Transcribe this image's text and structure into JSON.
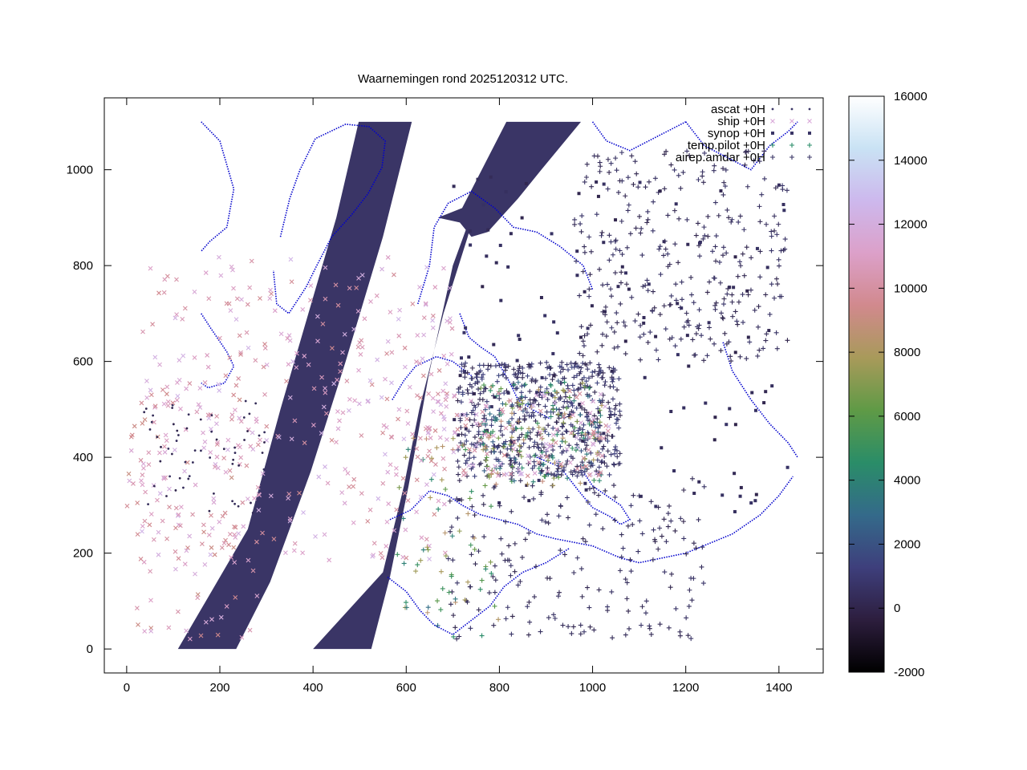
{
  "chart_data": {
    "type": "scatter",
    "title": "Waarnemingen rond 2025120312 UTC.",
    "xlabel": "",
    "ylabel": "",
    "xlim": [
      -48,
      1495
    ],
    "ylim": [
      -50,
      1150
    ],
    "x_ticks": [
      0,
      200,
      400,
      600,
      800,
      1000,
      1200,
      1400
    ],
    "y_ticks": [
      0,
      200,
      400,
      600,
      800,
      1000
    ],
    "grid": false,
    "legend_position": "top-right",
    "colorbar": {
      "range": [
        -2000,
        16000
      ],
      "ticks": [
        -2000,
        0,
        2000,
        4000,
        6000,
        8000,
        10000,
        12000,
        14000,
        16000
      ],
      "palette": [
        "#000000",
        "#2d1e3e",
        "#3e3f7c",
        "#346a8a",
        "#2a8d68",
        "#5f9a46",
        "#a89a5a",
        "#d1898d",
        "#dca0c9",
        "#cdb8ed",
        "#c9e2f4",
        "#ffffff"
      ]
    },
    "coastline_color": "#0000cc",
    "series": [
      {
        "name": "ascat +0H",
        "marker": "dot",
        "color": "#3a3566"
      },
      {
        "name": "ship +0H",
        "marker": "cross",
        "color": "#d9a8d8"
      },
      {
        "name": "synop +0H",
        "marker": "square",
        "color": "#3a3566"
      },
      {
        "name": "temp.pilot +0H",
        "marker": "plus",
        "color": "#2a8d68"
      },
      {
        "name": "airep.amdar +0H",
        "marker": "plus",
        "color": "#3a3566"
      }
    ],
    "swaths": [
      {
        "polygon": [
          [
            110,
            0
          ],
          [
            235,
            0
          ],
          [
            308,
            140
          ],
          [
            395,
            370
          ],
          [
            470,
            600
          ],
          [
            550,
            860
          ],
          [
            612,
            1100
          ],
          [
            498,
            1100
          ],
          [
            450,
            900
          ],
          [
            390,
            700
          ],
          [
            330,
            500
          ],
          [
            260,
            250
          ]
        ]
      },
      {
        "polygon": [
          [
            400,
            0
          ],
          [
            525,
            0
          ],
          [
            565,
            150
          ],
          [
            605,
            340
          ],
          [
            648,
            570
          ],
          [
            700,
            800
          ],
          [
            760,
            960
          ],
          [
            732,
            860
          ],
          [
            680,
            700
          ],
          [
            628,
            500
          ],
          [
            595,
            340
          ],
          [
            550,
            160
          ]
        ]
      },
      {
        "polygon": [
          [
            668,
            900
          ],
          [
            720,
            920
          ],
          [
            815,
            1100
          ],
          [
            975,
            1100
          ],
          [
            890,
            1000
          ],
          [
            840,
            940
          ],
          [
            775,
            870
          ],
          [
            740,
            860
          ],
          [
            715,
            890
          ]
        ]
      }
    ],
    "coastlines": [
      {
        "points": [
          [
            330,
            860
          ],
          [
            350,
            940
          ],
          [
            372,
            1000
          ],
          [
            405,
            1065
          ],
          [
            470,
            1095
          ],
          [
            520,
            1090
          ],
          [
            555,
            1060
          ],
          [
            548,
            1005
          ],
          [
            518,
            950
          ],
          [
            482,
            905
          ],
          [
            440,
            860
          ],
          [
            408,
            800
          ],
          [
            385,
            755
          ],
          [
            348,
            700
          ],
          [
            322,
            720
          ],
          [
            315,
            790
          ]
        ]
      },
      {
        "points": [
          [
            160,
            1100
          ],
          [
            200,
            1060
          ],
          [
            230,
            960
          ],
          [
            215,
            880
          ],
          [
            178,
            850
          ],
          [
            160,
            830
          ]
        ]
      },
      {
        "points": [
          [
            160,
            700
          ],
          [
            180,
            670
          ],
          [
            215,
            620
          ],
          [
            230,
            590
          ],
          [
            210,
            555
          ],
          [
            175,
            545
          ],
          [
            160,
            555
          ]
        ]
      },
      {
        "points": [
          [
            625,
            720
          ],
          [
            650,
            800
          ],
          [
            660,
            880
          ],
          [
            690,
            930
          ],
          [
            740,
            955
          ],
          [
            790,
            920
          ],
          [
            830,
            880
          ],
          [
            880,
            870
          ],
          [
            930,
            840
          ],
          [
            980,
            800
          ],
          [
            1000,
            750
          ]
        ]
      },
      {
        "points": [
          [
            715,
            700
          ],
          [
            735,
            650
          ],
          [
            760,
            630
          ],
          [
            790,
            610
          ],
          [
            820,
            560
          ],
          [
            840,
            520
          ],
          [
            870,
            500
          ],
          [
            910,
            480
          ]
        ]
      },
      {
        "points": [
          [
            570,
            520
          ],
          [
            595,
            560
          ],
          [
            620,
            590
          ],
          [
            665,
            610
          ],
          [
            700,
            600
          ],
          [
            740,
            570
          ]
        ]
      },
      {
        "points": [
          [
            565,
            270
          ],
          [
            610,
            290
          ],
          [
            650,
            330
          ],
          [
            690,
            320
          ],
          [
            720,
            300
          ],
          [
            760,
            280
          ],
          [
            800,
            270
          ],
          [
            840,
            260
          ],
          [
            880,
            240
          ],
          [
            920,
            230
          ],
          [
            1000,
            215
          ],
          [
            1060,
            190
          ],
          [
            1100,
            180
          ],
          [
            1200,
            200
          ],
          [
            1300,
            240
          ],
          [
            1360,
            280
          ],
          [
            1400,
            320
          ],
          [
            1430,
            360
          ]
        ]
      },
      {
        "points": [
          [
            560,
            150
          ],
          [
            600,
            120
          ],
          [
            630,
            80
          ],
          [
            660,
            50
          ],
          [
            700,
            30
          ],
          [
            740,
            60
          ],
          [
            780,
            90
          ],
          [
            810,
            130
          ],
          [
            850,
            160
          ],
          [
            900,
            180
          ],
          [
            950,
            210
          ]
        ]
      },
      {
        "points": [
          [
            880,
            400
          ],
          [
            930,
            380
          ],
          [
            970,
            330
          ],
          [
            1000,
            295
          ],
          [
            1040,
            275
          ],
          [
            1060,
            260
          ],
          [
            1080,
            270
          ],
          [
            1060,
            300
          ],
          [
            1030,
            320
          ],
          [
            1000,
            340
          ],
          [
            980,
            370
          ]
        ]
      },
      {
        "points": [
          [
            1200,
            1100
          ],
          [
            1240,
            1050
          ],
          [
            1300,
            1020
          ],
          [
            1340,
            1000
          ],
          [
            1380,
            1050
          ],
          [
            1420,
            1080
          ],
          [
            1440,
            1100
          ]
        ]
      },
      {
        "points": [
          [
            1280,
            640
          ],
          [
            1300,
            580
          ],
          [
            1340,
            520
          ],
          [
            1380,
            470
          ],
          [
            1420,
            430
          ],
          [
            1440,
            400
          ]
        ]
      },
      {
        "points": [
          [
            1000,
            1100
          ],
          [
            1030,
            1060
          ],
          [
            1080,
            1040
          ],
          [
            1120,
            1060
          ],
          [
            1160,
            1080
          ],
          [
            1200,
            1100
          ]
        ]
      }
    ],
    "clusters": [
      {
        "series": 1,
        "count": 360,
        "x_range": [
          30,
          700
        ],
        "y_range": [
          180,
          820
        ],
        "value_range": [
          9500,
          12500
        ]
      },
      {
        "series": 1,
        "count": 110,
        "x_range": [
          0,
          280
        ],
        "y_range": [
          20,
          560
        ],
        "value_range": [
          9000,
          12000
        ]
      },
      {
        "series": 4,
        "count": 560,
        "x_range": [
          710,
          1060
        ],
        "y_range": [
          360,
          600
        ],
        "value_range": [
          0,
          1500
        ]
      },
      {
        "series": 4,
        "count": 320,
        "x_range": [
          960,
          1420
        ],
        "y_range": [
          600,
          1040
        ],
        "value_range": [
          0,
          800
        ]
      },
      {
        "series": 4,
        "count": 200,
        "x_range": [
          690,
          1240
        ],
        "y_range": [
          20,
          360
        ],
        "value_range": [
          0,
          800
        ]
      },
      {
        "series": 2,
        "count": 140,
        "x_range": [
          700,
          1420
        ],
        "y_range": [
          280,
          1000
        ],
        "value_range": [
          0,
          700
        ]
      },
      {
        "series": 3,
        "count": 200,
        "x_range": [
          760,
          1020
        ],
        "y_range": [
          340,
          560
        ],
        "value_range": [
          2000,
          9000
        ]
      },
      {
        "series": 3,
        "count": 70,
        "x_range": [
          580,
          800
        ],
        "y_range": [
          0,
          450
        ],
        "value_range": [
          3000,
          9000
        ]
      },
      {
        "series": 1,
        "count": 150,
        "x_range": [
          620,
          1040
        ],
        "y_range": [
          360,
          540
        ],
        "value_range": [
          9500,
          12500
        ]
      },
      {
        "series": 0,
        "count": 60,
        "x_range": [
          30,
          300
        ],
        "y_range": [
          280,
          520
        ],
        "value_range": [
          0,
          500
        ]
      }
    ]
  }
}
